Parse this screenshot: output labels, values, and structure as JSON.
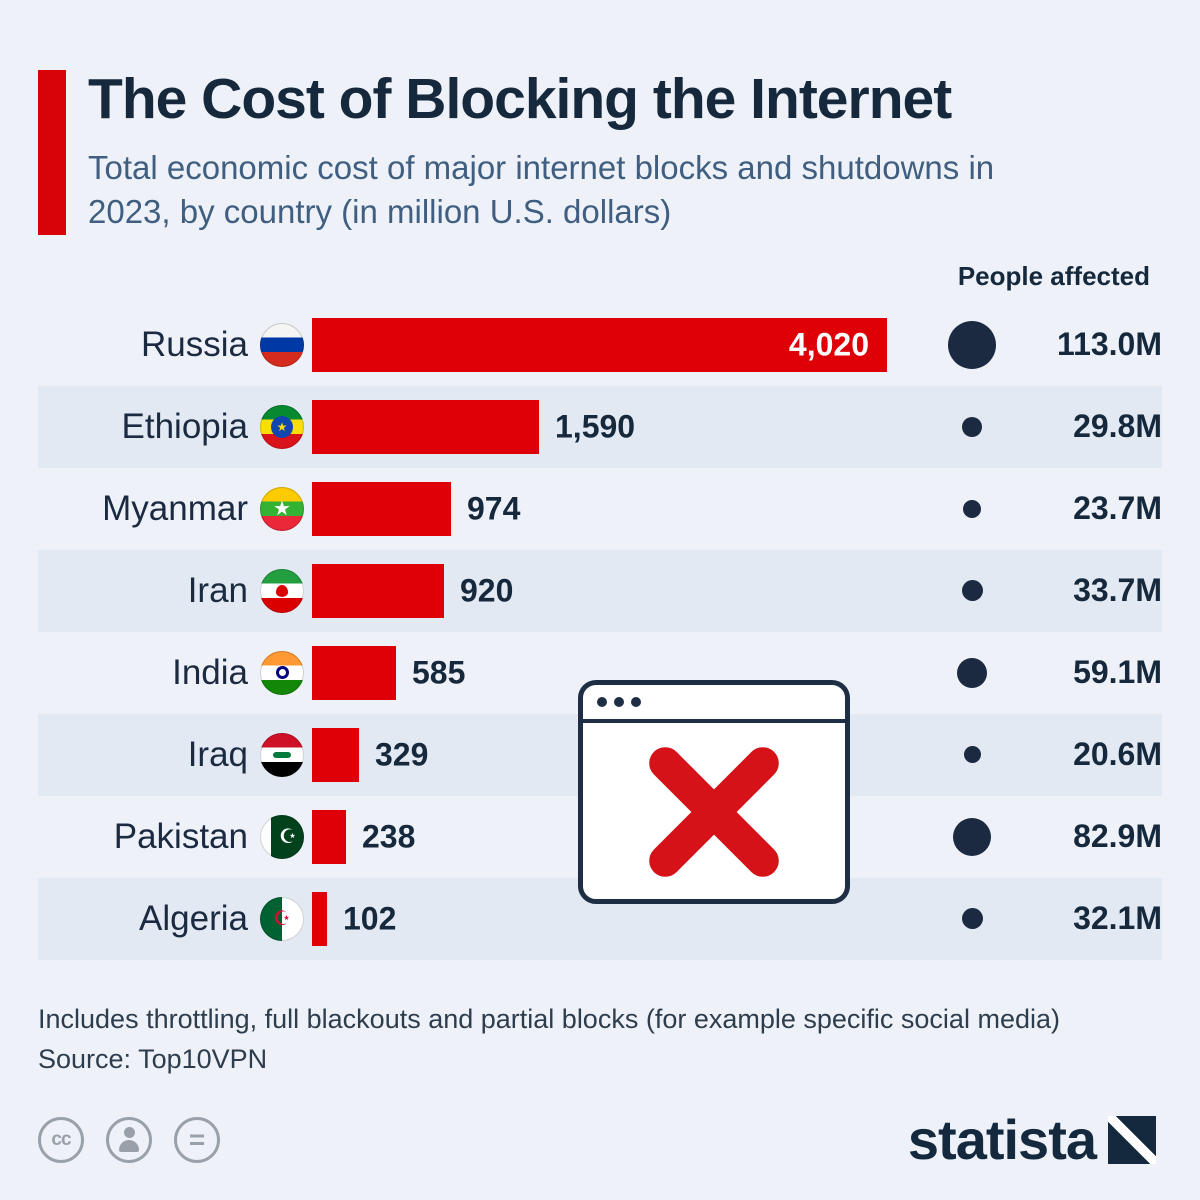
{
  "header": {
    "title": "The Cost of Blocking the Internet",
    "subtitle": "Total economic cost of major internet blocks and shutdowns in 2023, by country (in million U.S. dollars)"
  },
  "columns": {
    "people_affected": "People affected"
  },
  "chart_data": {
    "type": "bar",
    "title": "The Cost of Blocking the Internet",
    "subtitle": "Total economic cost of major internet blocks and shutdowns in 2023, by country (in million U.S. dollars)",
    "unit": "million U.S. dollars",
    "categories": [
      "Russia",
      "Ethiopia",
      "Myanmar",
      "Iran",
      "India",
      "Iraq",
      "Pakistan",
      "Algeria"
    ],
    "values": [
      4020,
      1590,
      974,
      920,
      585,
      329,
      238,
      102
    ],
    "value_labels": [
      "4,020",
      "1,590",
      "974",
      "920",
      "585",
      "329",
      "238",
      "102"
    ],
    "people_affected_labels": [
      "113.0M",
      "29.8M",
      "23.7M",
      "33.7M",
      "59.1M",
      "20.6M",
      "82.9M",
      "32.1M"
    ],
    "people_affected_millions": [
      113.0,
      29.8,
      23.7,
      33.7,
      59.1,
      20.6,
      82.9,
      32.1
    ],
    "xlim": [
      0,
      4020
    ],
    "legend_position": "none",
    "grid": false,
    "bar_color": "#de0006",
    "dot_color": "#1b2a41"
  },
  "rows": [
    {
      "country": "Russia",
      "flag": "russia",
      "flag_icon": "russia-flag-icon",
      "value": 4020,
      "value_label": "4,020",
      "value_inside": true,
      "people": "113.0M",
      "people_millions": 113.0
    },
    {
      "country": "Ethiopia",
      "flag": "ethiopia",
      "flag_icon": "ethiopia-flag-icon",
      "value": 1590,
      "value_label": "1,590",
      "value_inside": false,
      "people": "29.8M",
      "people_millions": 29.8
    },
    {
      "country": "Myanmar",
      "flag": "myanmar",
      "flag_icon": "myanmar-flag-icon",
      "value": 974,
      "value_label": "974",
      "value_inside": false,
      "people": "23.7M",
      "people_millions": 23.7
    },
    {
      "country": "Iran",
      "flag": "iran",
      "flag_icon": "iran-flag-icon",
      "value": 920,
      "value_label": "920",
      "value_inside": false,
      "people": "33.7M",
      "people_millions": 33.7
    },
    {
      "country": "India",
      "flag": "india",
      "flag_icon": "india-flag-icon",
      "value": 585,
      "value_label": "585",
      "value_inside": false,
      "people": "59.1M",
      "people_millions": 59.1
    },
    {
      "country": "Iraq",
      "flag": "iraq",
      "flag_icon": "iraq-flag-icon",
      "value": 329,
      "value_label": "329",
      "value_inside": false,
      "people": "20.6M",
      "people_millions": 20.6
    },
    {
      "country": "Pakistan",
      "flag": "pakistan",
      "flag_icon": "pakistan-flag-icon",
      "value": 238,
      "value_label": "238",
      "value_inside": false,
      "people": "82.9M",
      "people_millions": 82.9
    },
    {
      "country": "Algeria",
      "flag": "algeria",
      "flag_icon": "algeria-flag-icon",
      "value": 102,
      "value_label": "102",
      "value_inside": false,
      "people": "32.1M",
      "people_millions": 32.1
    }
  ],
  "flag_emblems": {
    "ethiopia": "★",
    "myanmar": "★",
    "iran": "",
    "india": "",
    "iraq": "",
    "pakistan": "☪",
    "algeria": "☪"
  },
  "footer": {
    "note": "Includes throttling, full blackouts and partial blocks (for example specific social media)",
    "source": "Source: Top10VPN"
  },
  "branding": {
    "logo_text": "statista",
    "license_cc": "cc",
    "license_equals": "="
  },
  "colors": {
    "background": "#eef2f8",
    "row_stripe": "#e3e9f2",
    "bar_red": "#de0006",
    "accent_red": "#d80309",
    "navy": "#16283c",
    "subtitle_blue": "#3f5e80",
    "dot_navy": "#1b2a41",
    "x_red": "#d41217"
  }
}
